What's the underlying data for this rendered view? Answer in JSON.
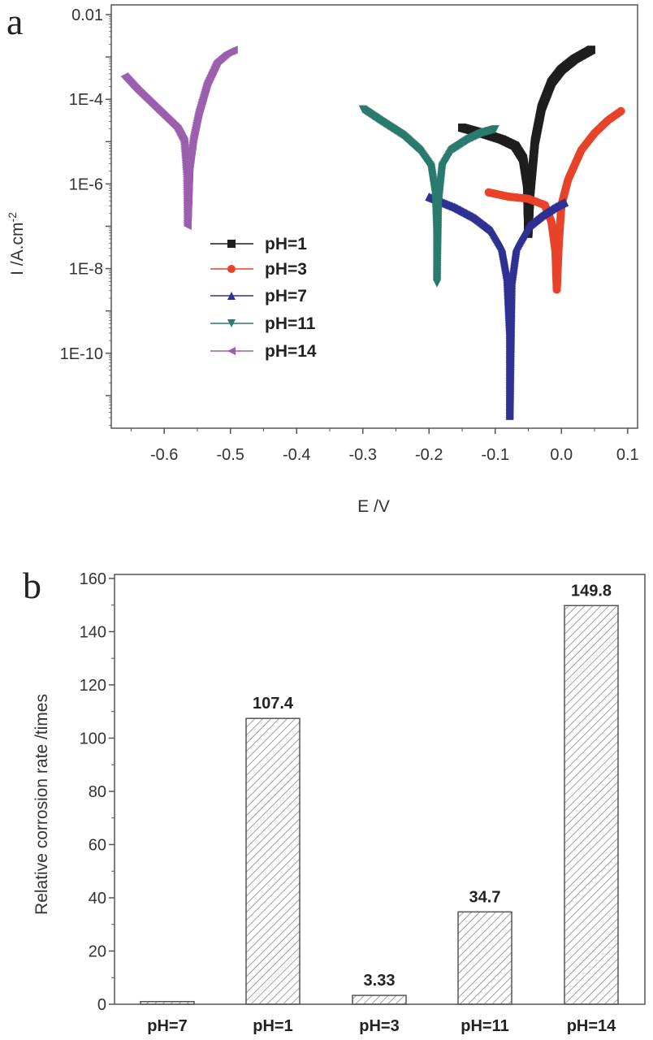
{
  "chart_data": [
    {
      "panel_label": "a",
      "type": "line",
      "xlabel": "E /V",
      "ylabel": "I /A.cm",
      "ylabel_sup": "-2",
      "yscale": "log",
      "xlim": [
        -0.68,
        0.115
      ],
      "ylim_log10": [
        -11.77,
        -1.77
      ],
      "xticks": [
        -0.6,
        -0.5,
        -0.4,
        -0.3,
        -0.2,
        -0.1,
        0.0,
        0.1
      ],
      "xtick_labels": [
        "-0.6",
        "-0.5",
        "-0.4",
        "-0.3",
        "-0.2",
        "-0.1",
        "0.0",
        "0.1"
      ],
      "yticks_log10": [
        -2,
        -4,
        -6,
        -8,
        -10
      ],
      "ytick_labels": [
        "0.01",
        "1E-4",
        "1E-6",
        "1E-8",
        "1E-10"
      ],
      "legend_position": "center-left",
      "series": [
        {
          "name": "pH=1",
          "color": "#1e1e1e",
          "marker": "square",
          "points_E_log10I": [
            [
              -0.15,
              -4.67
            ],
            [
              -0.12,
              -4.8
            ],
            [
              -0.09,
              -4.95
            ],
            [
              -0.07,
              -5.1
            ],
            [
              -0.058,
              -5.4
            ],
            [
              -0.052,
              -6.0
            ],
            [
              -0.05,
              -7.18
            ],
            [
              -0.047,
              -6.2
            ],
            [
              -0.04,
              -5.0
            ],
            [
              -0.03,
              -4.2
            ],
            [
              -0.015,
              -3.6
            ],
            [
              0.0,
              -3.3
            ],
            [
              0.02,
              -3.05
            ],
            [
              0.045,
              -2.83
            ]
          ]
        },
        {
          "name": "pH=3",
          "color": "#e8432a",
          "marker": "circle",
          "points_E_log10I": [
            [
              -0.11,
              -6.2
            ],
            [
              -0.08,
              -6.3
            ],
            [
              -0.05,
              -6.35
            ],
            [
              -0.025,
              -6.5
            ],
            [
              -0.015,
              -6.9
            ],
            [
              -0.009,
              -7.6
            ],
            [
              -0.007,
              -8.5
            ],
            [
              -0.004,
              -7.4
            ],
            [
              0.0,
              -6.5
            ],
            [
              0.01,
              -5.9
            ],
            [
              0.03,
              -5.2
            ],
            [
              0.05,
              -4.8
            ],
            [
              0.07,
              -4.5
            ],
            [
              0.09,
              -4.28
            ]
          ]
        },
        {
          "name": "pH=7",
          "color": "#2e3192",
          "marker": "triangle-up",
          "points_E_log10I": [
            [
              -0.2,
              -6.3
            ],
            [
              -0.16,
              -6.55
            ],
            [
              -0.13,
              -6.8
            ],
            [
              -0.105,
              -7.1
            ],
            [
              -0.09,
              -7.5
            ],
            [
              -0.082,
              -8.2
            ],
            [
              -0.078,
              -9.5
            ],
            [
              -0.078,
              -11.48
            ],
            [
              -0.075,
              -8.3
            ],
            [
              -0.068,
              -7.5
            ],
            [
              -0.05,
              -7.0
            ],
            [
              -0.03,
              -6.75
            ],
            [
              -0.01,
              -6.55
            ],
            [
              0.005,
              -6.43
            ]
          ]
        },
        {
          "name": "pH=11",
          "color": "#2a7a6e",
          "marker": "triangle-down",
          "points_E_log10I": [
            [
              -0.3,
              -4.24
            ],
            [
              -0.27,
              -4.55
            ],
            [
              -0.24,
              -4.85
            ],
            [
              -0.215,
              -5.2
            ],
            [
              -0.197,
              -5.6
            ],
            [
              -0.19,
              -6.3
            ],
            [
              -0.188,
              -7.2
            ],
            [
              -0.188,
              -8.35
            ],
            [
              -0.186,
              -6.5
            ],
            [
              -0.18,
              -5.6
            ],
            [
              -0.165,
              -5.2
            ],
            [
              -0.14,
              -4.95
            ],
            [
              -0.12,
              -4.8
            ],
            [
              -0.1,
              -4.71
            ]
          ]
        },
        {
          "name": "pH=14",
          "color": "#9b5fae",
          "marker": "triangle-left",
          "points_E_log10I": [
            [
              -0.66,
              -3.46
            ],
            [
              -0.64,
              -3.8
            ],
            [
              -0.62,
              -4.1
            ],
            [
              -0.6,
              -4.4
            ],
            [
              -0.58,
              -4.7
            ],
            [
              -0.57,
              -5.0
            ],
            [
              -0.566,
              -5.8
            ],
            [
              -0.565,
              -6.99
            ],
            [
              -0.562,
              -5.6
            ],
            [
              -0.556,
              -4.9
            ],
            [
              -0.548,
              -4.3
            ],
            [
              -0.535,
              -3.6
            ],
            [
              -0.52,
              -3.1
            ],
            [
              -0.505,
              -2.9
            ],
            [
              -0.495,
              -2.83
            ]
          ]
        }
      ]
    },
    {
      "panel_label": "b",
      "type": "bar",
      "ylabel": "Relative corrosion rate /times",
      "xlabel": "",
      "categories": [
        "pH=7",
        "pH=1",
        "pH=3",
        "pH=11",
        "pH=14"
      ],
      "values": [
        1,
        107.4,
        3.33,
        34.7,
        149.8
      ],
      "data_labels": [
        "",
        "107.4",
        "3.33",
        "34.7",
        "149.8"
      ],
      "ylim": [
        0,
        161.5
      ],
      "yticks": [
        0,
        20,
        40,
        60,
        80,
        100,
        120,
        140,
        160
      ],
      "ytick_labels": [
        "0",
        "20",
        "40",
        "60",
        "80",
        "100",
        "120",
        "140",
        "160"
      ],
      "fill_pattern": "diagonal-hatch"
    }
  ]
}
